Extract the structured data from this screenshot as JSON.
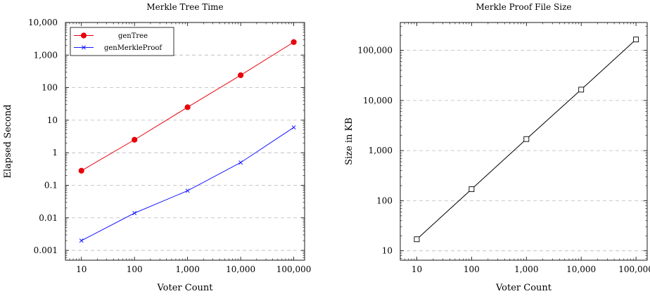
{
  "chart_data": [
    {
      "type": "line",
      "title": "Merkle Tree Time",
      "xlabel": "Voter Count",
      "ylabel": "Elapsed Second",
      "x_scale": "log",
      "y_scale": "log",
      "x_tick_labels": [
        "10",
        "100",
        "1,000",
        "10,000",
        "100,000"
      ],
      "y_tick_labels": [
        "0.001",
        "0.01",
        "0.1",
        "1",
        "10",
        "100",
        "1,000",
        "10,000"
      ],
      "xlim": [
        5,
        160000
      ],
      "ylim": [
        0.0005,
        10000
      ],
      "grid": "horizontal dashed",
      "legend_position": "top-left",
      "series": [
        {
          "name": "genTree",
          "color": "#e8000b",
          "marker": "circle",
          "x": [
            10,
            100,
            1000,
            10000,
            100000
          ],
          "y": [
            0.28,
            2.5,
            25,
            240,
            2500
          ]
        },
        {
          "name": "genMerkleProof",
          "color": "#1a1aff",
          "marker": "x",
          "x": [
            10,
            100,
            1000,
            10000,
            100000
          ],
          "y": [
            0.002,
            0.014,
            0.068,
            0.5,
            6
          ]
        }
      ]
    },
    {
      "type": "line",
      "title": "Merkle Proof File Size",
      "xlabel": "Voter Count",
      "ylabel": "Size in KB",
      "x_scale": "log",
      "y_scale": "log",
      "x_tick_labels": [
        "10",
        "100",
        "1,000",
        "10,000",
        "100,000"
      ],
      "y_tick_labels": [
        "10",
        "100",
        "1,000",
        "10,000",
        "100,000"
      ],
      "xlim": [
        5,
        160000
      ],
      "ylim": [
        6.5,
        360000
      ],
      "grid": "horizontal dashed",
      "legend_position": "none",
      "series": [
        {
          "color": "#000000",
          "marker": "square",
          "x": [
            10,
            100,
            1000,
            10000,
            100000
          ],
          "y": [
            17,
            170,
            1700,
            16500,
            165000
          ]
        }
      ]
    }
  ]
}
